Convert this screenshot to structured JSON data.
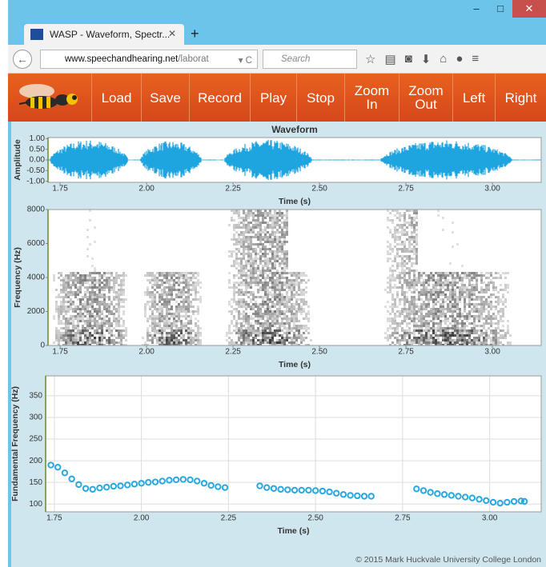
{
  "browser": {
    "tab_title": "WASP - Waveform, Spectr...",
    "url_domain": "www.speechandhearing.net",
    "url_path": "/laborat",
    "search_placeholder": "Search"
  },
  "toolbar": {
    "buttons": [
      "Load",
      "Save",
      "Record",
      "Play",
      "Stop",
      "Zoom In",
      "Zoom Out",
      "Left",
      "Right"
    ]
  },
  "chart_data": [
    {
      "type": "waveform",
      "title": "Waveform",
      "y_label": "Amplitude",
      "x_label": "Time (s)",
      "xlim": [
        1.715,
        3.141
      ],
      "xticks": [
        1.75,
        {
          "value": 2,
          "label": "2.00"
        },
        2.25,
        {
          "value": 2.5,
          "label": "2.50"
        },
        2.75,
        {
          "value": 3,
          "label": "3.00"
        }
      ],
      "ylim": [
        -1.05,
        1.05
      ],
      "yticks": [
        {
          "value": 1,
          "label": "1.00"
        },
        {
          "value": 0.5,
          "label": "0.50"
        },
        {
          "value": 0,
          "label": "0.00"
        },
        {
          "value": -0.5,
          "label": "-0.50"
        },
        {
          "value": -1,
          "label": "-1.00"
        }
      ],
      "grid": false,
      "color": "#1ea4de"
    },
    {
      "type": "spectrogram",
      "y_label": "Frequency (Hz)",
      "x_label": "Time (s)",
      "xlim": [
        1.715,
        3.141
      ],
      "xticks": [
        1.75,
        {
          "value": 2,
          "label": "2.00"
        },
        2.25,
        {
          "value": 2.5,
          "label": "2.50"
        },
        2.75,
        {
          "value": 3,
          "label": "3.00"
        }
      ],
      "ylim": [
        0,
        8000
      ],
      "yticks": [
        0,
        2000,
        4000,
        6000,
        8000
      ],
      "grid": false
    },
    {
      "type": "scatter",
      "y_label": "Fundamental Frequency (Hz)",
      "x_label": "Time (s)",
      "xlim": [
        1.725,
        3.148
      ],
      "xticks": [
        1.75,
        {
          "value": 2,
          "label": "2.00"
        },
        2.25,
        {
          "value": 2.5,
          "label": "2.50"
        },
        2.75,
        {
          "value": 3,
          "label": "3.00"
        }
      ],
      "ylim": [
        82,
        396
      ],
      "yticks": [
        100,
        150,
        200,
        250,
        300,
        350
      ],
      "grid": true,
      "series": [
        {
          "color": "#29a8e0",
          "x": [
            1.74,
            1.76,
            1.78,
            1.8,
            1.82,
            1.84,
            1.86,
            1.88,
            1.9,
            1.92,
            1.94,
            1.96,
            1.98,
            2.0,
            2.02,
            2.04,
            2.06,
            2.08,
            2.1,
            2.12,
            2.14,
            2.16,
            2.18,
            2.2,
            2.22,
            2.24,
            2.34,
            2.36,
            2.38,
            2.4,
            2.42,
            2.44,
            2.46,
            2.48,
            2.5,
            2.52,
            2.54,
            2.56,
            2.58,
            2.6,
            2.62,
            2.64,
            2.66,
            2.79,
            2.81,
            2.83,
            2.85,
            2.87,
            2.89,
            2.91,
            2.93,
            2.95,
            2.97,
            2.99,
            3.01,
            3.03,
            3.05,
            3.07,
            3.09,
            3.1
          ],
          "values": [
            190,
            185,
            172,
            158,
            145,
            136,
            134,
            137,
            139,
            141,
            142,
            144,
            146,
            148,
            150,
            151,
            153,
            155,
            156,
            157,
            156,
            153,
            148,
            143,
            140,
            138,
            142,
            138,
            136,
            134,
            133,
            132,
            132,
            132,
            131,
            130,
            128,
            125,
            122,
            120,
            119,
            118,
            118,
            135,
            131,
            127,
            124,
            122,
            120,
            118,
            116,
            114,
            111,
            108,
            104,
            102,
            104,
            106,
            107,
            106
          ]
        }
      ]
    }
  ],
  "footer": "© 2015 Mark Huckvale University College London"
}
